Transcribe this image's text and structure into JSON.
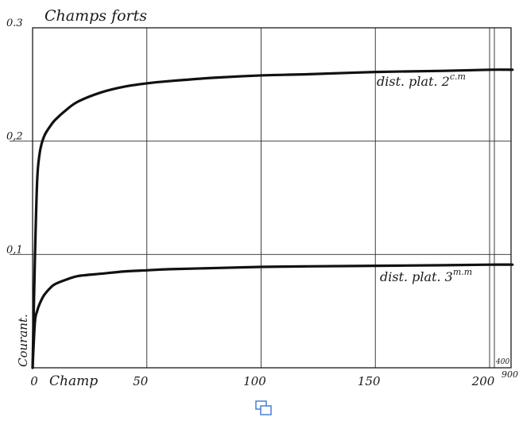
{
  "chart_data": {
    "type": "line",
    "title": "Champs forts",
    "xlabel": "Champ",
    "ylabel": "Courant.",
    "xlim": [
      0,
      210
    ],
    "ylim": [
      0,
      0.3
    ],
    "x_ticks": [
      {
        "value": 0,
        "label": "0"
      },
      {
        "value": 50,
        "label": "50"
      },
      {
        "value": 100,
        "label": "100"
      },
      {
        "value": 150,
        "label": "150"
      },
      {
        "value": 200,
        "label": "200"
      }
    ],
    "y_ticks": [
      {
        "value": 0.1,
        "label": "0,1"
      },
      {
        "value": 0.2,
        "label": "0,2"
      },
      {
        "value": 0.3,
        "label": "0.3"
      }
    ],
    "grid": true,
    "extra_labels": {
      "axis_end_top": "400",
      "axis_end_bottom": "900"
    },
    "series": [
      {
        "name": "dist. plat. 2c.m",
        "label_main": "dist. plat. 2",
        "label_sup": "c.m",
        "x": [
          0,
          1,
          2,
          3,
          4,
          5,
          6,
          8,
          10,
          15,
          20,
          30,
          40,
          50,
          60,
          80,
          100,
          120,
          150,
          180,
          200,
          210
        ],
        "y": [
          0,
          0.095,
          0.165,
          0.188,
          0.198,
          0.204,
          0.208,
          0.214,
          0.219,
          0.228,
          0.235,
          0.243,
          0.248,
          0.251,
          0.253,
          0.256,
          0.258,
          0.259,
          0.261,
          0.262,
          0.263,
          0.263
        ]
      },
      {
        "name": "dist. plat. 3m.m",
        "label_main": "dist. plat. 3",
        "label_sup": "m.m",
        "x": [
          0,
          1,
          2,
          3,
          5,
          8,
          10,
          15,
          20,
          30,
          40,
          50,
          60,
          80,
          100,
          120,
          150,
          180,
          200,
          210
        ],
        "y": [
          0,
          0.04,
          0.05,
          0.056,
          0.064,
          0.071,
          0.074,
          0.078,
          0.081,
          0.083,
          0.085,
          0.086,
          0.087,
          0.088,
          0.089,
          0.0895,
          0.09,
          0.0905,
          0.091,
          0.091
        ]
      }
    ]
  },
  "ui": {
    "expand_icon": "expand-icon"
  }
}
